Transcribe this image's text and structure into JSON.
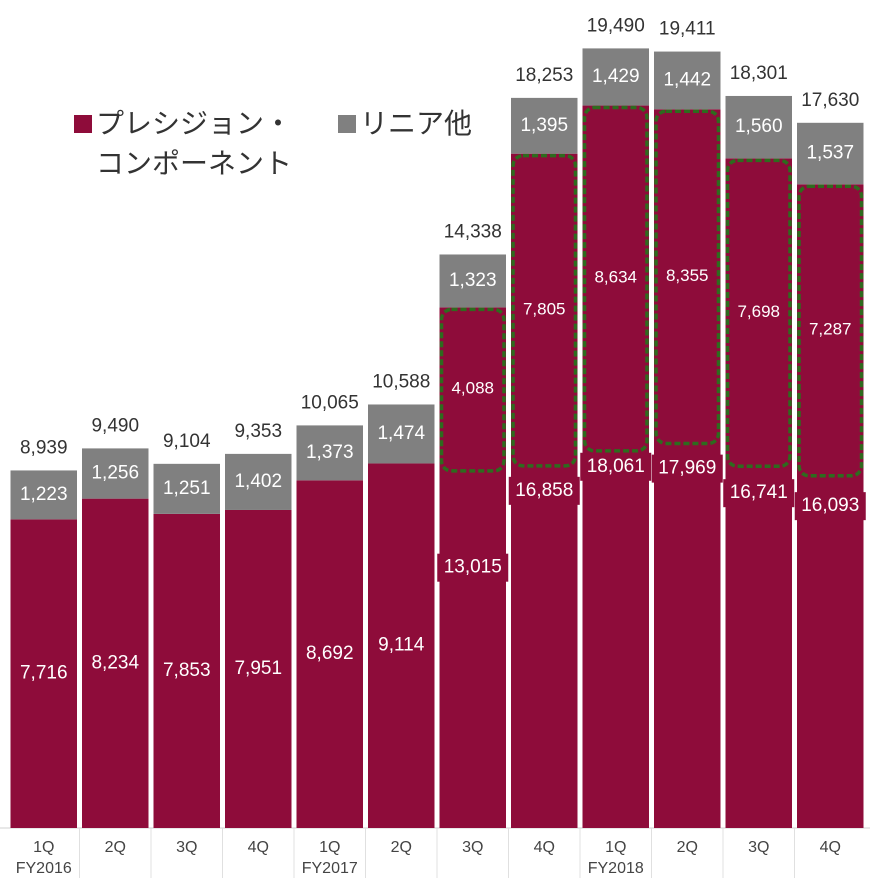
{
  "chart_data": {
    "type": "stacked_bar",
    "categories": [
      "1Q",
      "2Q",
      "3Q",
      "4Q",
      "1Q",
      "2Q",
      "3Q",
      "4Q",
      "1Q",
      "2Q",
      "3Q",
      "4Q"
    ],
    "category_groups": [
      "FY2016",
      null,
      null,
      null,
      "FY2017",
      null,
      null,
      null,
      "FY2018",
      null,
      null,
      null
    ],
    "series": [
      {
        "name": "プレシジョン・コンポーネント",
        "color": "#8e0c3a",
        "values": [
          7716,
          8234,
          7853,
          7951,
          8692,
          9114,
          13015,
          16858,
          18061,
          17969,
          16741,
          16093
        ]
      },
      {
        "name": "リニア他",
        "color": "#808080",
        "values": [
          1223,
          1256,
          1251,
          1402,
          1373,
          1474,
          1323,
          1395,
          1429,
          1442,
          1560,
          1537
        ]
      }
    ],
    "totals": [
      8939,
      9490,
      9104,
      9353,
      10065,
      10588,
      14338,
      18253,
      19490,
      19411,
      18301,
      17630
    ],
    "highlight": {
      "color": "#2e6b1e",
      "values": [
        null,
        null,
        null,
        null,
        null,
        null,
        4088,
        7805,
        8634,
        8355,
        7698,
        7287
      ]
    },
    "ylim": [
      0,
      20700
    ]
  }
}
